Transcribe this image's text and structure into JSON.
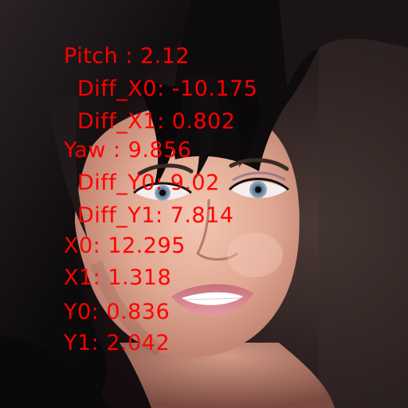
{
  "image": {
    "subject": "face-portrait",
    "background_color": "#1a1012",
    "annotation_color": "#ff0000"
  },
  "overlay": {
    "pitch": "Pitch : 2.12",
    "diff_x0": "Diff_X0: -10.175",
    "diff_x1": "Diff_X1: 0.802",
    "yaw": "Yaw : 9.856",
    "diff_y0": "Diff_Y0: 9.02",
    "diff_y1": "Diff_Y1: 7.814",
    "x0": "X0: 12.295",
    "x1": "X1: 1.318",
    "y0": "Y0: 0.836",
    "y1": "Y1: 2.042"
  }
}
